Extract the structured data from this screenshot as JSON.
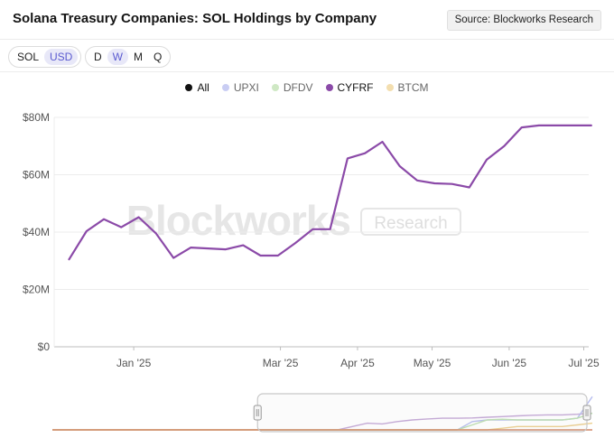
{
  "header": {
    "title": "Solana Treasury Companies: SOL Holdings by Company",
    "source_label": "Source: Blockworks Research"
  },
  "toolbar": {
    "unit_options": [
      {
        "label": "SOL",
        "active": false
      },
      {
        "label": "USD",
        "active": true
      }
    ],
    "period_options": [
      {
        "label": "D",
        "active": false
      },
      {
        "label": "W",
        "active": true
      },
      {
        "label": "M",
        "active": false
      },
      {
        "label": "Q",
        "active": false
      }
    ]
  },
  "legend": [
    {
      "label": "All",
      "color": "#111111",
      "active": true
    },
    {
      "label": "UPXI",
      "color": "#c9cdf3",
      "active": false
    },
    {
      "label": "DFDV",
      "color": "#cfe8c4",
      "active": false
    },
    {
      "label": "CYFRF",
      "color": "#8b4aa8",
      "active": true
    },
    {
      "label": "BTCM",
      "color": "#f3deaf",
      "active": false
    }
  ],
  "watermark": {
    "brand": "Blockworks",
    "tag": "Research"
  },
  "chart_data": {
    "type": "line",
    "title": "Solana Treasury Companies: SOL Holdings by Company",
    "ylabel": "USD",
    "ylim": [
      0,
      80
    ],
    "y_ticks": [
      0,
      20,
      40,
      60,
      80
    ],
    "y_tick_labels": [
      "$0",
      "$20M",
      "$40M",
      "$60M",
      "$80M"
    ],
    "x_range_days": [
      -32,
      183
    ],
    "x_ticks": [
      {
        "label": "Jan '25",
        "day": 0
      },
      {
        "label": "Mar '25",
        "day": 59
      },
      {
        "label": "Apr '25",
        "day": 90
      },
      {
        "label": "May '25",
        "day": 120
      },
      {
        "label": "Jun '25",
        "day": 151
      },
      {
        "label": "Jul '25",
        "day": 181
      }
    ],
    "grid": true,
    "series": [
      {
        "name": "CYFRF",
        "color": "#8b4aa8",
        "x_days": [
          -26,
          -19,
          -12,
          -5,
          2,
          9,
          16,
          23,
          30,
          37,
          44,
          51,
          58,
          65,
          72,
          79,
          86,
          93,
          100,
          107,
          114,
          121,
          128,
          135,
          142,
          149,
          156,
          163,
          170,
          177,
          184
        ],
        "values": [
          30.5,
          40.3,
          44.5,
          41.7,
          45.2,
          39.5,
          31.0,
          34.6,
          34.3,
          34.0,
          35.4,
          31.8,
          31.8,
          36.2,
          41.0,
          41.0,
          65.7,
          67.5,
          71.5,
          63.0,
          58.0,
          57.0,
          56.8,
          55.6,
          65.3,
          70.0,
          76.5,
          77.2,
          77.2,
          77.2,
          77.2
        ]
      }
    ]
  },
  "navigator": {
    "selection_start_fraction": 0.38,
    "selection_end_fraction": 0.99,
    "series": [
      {
        "name": "All",
        "color": "#c4a8d6",
        "values": [
          0,
          0,
          0,
          0,
          0,
          0,
          0,
          0,
          0,
          0,
          0,
          0,
          0,
          0,
          0,
          0,
          0,
          0,
          0,
          0,
          0.1,
          0.2,
          0.18,
          0.25,
          0.3,
          0.33,
          0.35,
          0.35,
          0.36,
          0.38,
          0.4,
          0.42,
          0.44,
          0.45,
          0.45,
          0.47,
          0.5
        ]
      },
      {
        "name": "UPXI",
        "color": "#b7bdee",
        "values": [
          0,
          0,
          0,
          0,
          0,
          0,
          0,
          0,
          0,
          0,
          0,
          0,
          0,
          0,
          0,
          0,
          0,
          0,
          0,
          0,
          0,
          0,
          0,
          0,
          0,
          0,
          0,
          0,
          0.25,
          0.3,
          0.3,
          0.3,
          0.3,
          0.3,
          0.3,
          0.35,
          1.0
        ]
      },
      {
        "name": "DFDV",
        "color": "#bcdfb0",
        "values": [
          0,
          0,
          0,
          0,
          0,
          0,
          0,
          0,
          0,
          0,
          0,
          0,
          0,
          0,
          0,
          0,
          0,
          0,
          0,
          0,
          0,
          0,
          0,
          0,
          0,
          0,
          0,
          0,
          0.15,
          0.3,
          0.32,
          0.3,
          0.3,
          0.3,
          0.3,
          0.35,
          0.5
        ]
      },
      {
        "name": "BTCM",
        "color": "#eccf8f",
        "values": [
          0,
          0,
          0,
          0,
          0,
          0,
          0,
          0,
          0,
          0,
          0,
          0,
          0,
          0,
          0,
          0,
          0,
          0,
          0,
          0,
          0,
          0,
          0,
          0,
          0,
          0,
          0,
          0,
          0,
          0,
          0.05,
          0.1,
          0.1,
          0.1,
          0.1,
          0.15,
          0.2
        ]
      },
      {
        "name": "CYFRF",
        "color": "#d28a6a",
        "values": [
          0,
          0,
          0,
          0,
          0,
          0,
          0,
          0,
          0,
          0,
          0,
          0,
          0,
          0,
          0,
          0,
          0,
          0,
          0,
          0,
          0,
          0,
          0,
          0,
          0,
          0,
          0,
          0,
          0,
          0,
          0,
          0,
          0,
          0,
          0,
          0,
          0
        ]
      }
    ]
  }
}
